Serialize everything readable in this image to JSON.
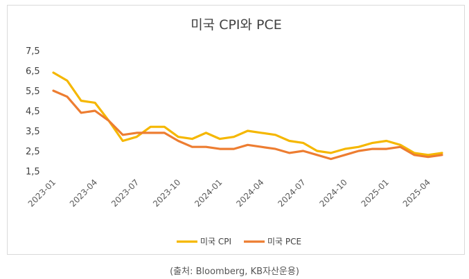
{
  "chart_data": {
    "type": "line",
    "title": "미국 CPI와 PCE",
    "x": [
      "2023-01",
      "2023-02",
      "2023-03",
      "2023-04",
      "2023-05",
      "2023-06",
      "2023-07",
      "2023-08",
      "2023-09",
      "2023-10",
      "2023-11",
      "2023-12",
      "2024-01",
      "2024-02",
      "2024-03",
      "2024-04",
      "2024-05",
      "2024-06",
      "2024-07",
      "2024-08",
      "2024-09",
      "2024-10",
      "2024-11",
      "2024-12",
      "2025-01",
      "2025-02",
      "2025-03",
      "2025-04",
      "2025-05"
    ],
    "x_tick_labels": [
      "2023-01",
      "2023-04",
      "2023-07",
      "2023-10",
      "2024-01",
      "2024-04",
      "2024-07",
      "2024-10",
      "2025-01",
      "2025-04"
    ],
    "y_tick_labels": [
      "7,5",
      "6,5",
      "5,5",
      "4,5",
      "3,5",
      "2,5",
      "1,5"
    ],
    "y_ticks": [
      7.5,
      6.5,
      5.5,
      4.5,
      3.5,
      2.5,
      1.5
    ],
    "ylim": [
      1.5,
      7.5
    ],
    "grid": false,
    "legend": "bottom",
    "series": [
      {
        "name": "미국 CPI",
        "color": "#f5b700",
        "values": [
          6.4,
          6.0,
          5.0,
          4.9,
          4.0,
          3.0,
          3.2,
          3.7,
          3.7,
          3.2,
          3.1,
          3.4,
          3.1,
          3.2,
          3.5,
          3.4,
          3.3,
          3.0,
          2.9,
          2.5,
          2.4,
          2.6,
          2.7,
          2.9,
          3.0,
          2.8,
          2.4,
          2.3,
          2.4
        ]
      },
      {
        "name": "미국 PCE",
        "color": "#ed7d31",
        "values": [
          5.5,
          5.2,
          4.4,
          4.5,
          4.0,
          3.3,
          3.4,
          3.4,
          3.4,
          3.0,
          2.7,
          2.7,
          2.6,
          2.6,
          2.8,
          2.7,
          2.6,
          2.4,
          2.5,
          2.3,
          2.1,
          2.3,
          2.5,
          2.6,
          2.6,
          2.7,
          2.3,
          2.2,
          2.3
        ]
      }
    ]
  },
  "caption": "(출처: Bloomberg, KB자산운용)"
}
